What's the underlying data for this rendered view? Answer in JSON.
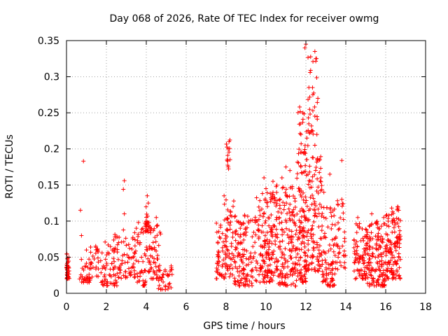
{
  "chart_data": {
    "type": "scatter",
    "title": "Day 068 of 2026, Rate Of TEC Index for receiver owmg",
    "xlabel": "GPS time / hours",
    "ylabel": "ROTI / TECUs",
    "xlim": [
      0,
      18
    ],
    "ylim": [
      0,
      0.35
    ],
    "grid": true,
    "marker": "plus",
    "marker_color": "#ff0000",
    "xticks": [
      "0",
      "2",
      "4",
      "6",
      "8",
      "10",
      "12",
      "14",
      "16",
      "18"
    ],
    "yticks": [
      "0",
      "0.05",
      "0.1",
      "0.15",
      "0.2",
      "0.25",
      "0.3",
      "0.35"
    ],
    "xtick_values": [
      0,
      2,
      4,
      6,
      8,
      10,
      12,
      14,
      16,
      18
    ],
    "ytick_values": [
      0,
      0.05,
      0.1,
      0.15,
      0.2,
      0.25,
      0.3,
      0.35
    ],
    "clusters": [
      {
        "x": [
          0.0,
          0.15
        ],
        "y": [
          0.02,
          0.055
        ],
        "n": 40
      },
      {
        "x": [
          0.65,
          1.2
        ],
        "y": [
          0.015,
          0.05
        ],
        "n": 35
      },
      {
        "x": [
          1.2,
          1.6
        ],
        "y": [
          0.02,
          0.07
        ],
        "n": 25
      },
      {
        "x": [
          1.7,
          2.4
        ],
        "y": [
          0.01,
          0.075
        ],
        "n": 50
      },
      {
        "x": [
          2.4,
          3.0
        ],
        "y": [
          0.01,
          0.09
        ],
        "n": 45
      },
      {
        "x": [
          3.0,
          3.5
        ],
        "y": [
          0.02,
          0.085
        ],
        "n": 35
      },
      {
        "x": [
          3.5,
          4.1
        ],
        "y": [
          0.01,
          0.1
        ],
        "n": 45
      },
      {
        "x": [
          3.95,
          4.15
        ],
        "y": [
          0.085,
          0.125
        ],
        "n": 22
      },
      {
        "x": [
          4.1,
          4.8
        ],
        "y": [
          0.02,
          0.1
        ],
        "n": 60
      },
      {
        "x": [
          4.6,
          5.3
        ],
        "y": [
          0.005,
          0.04
        ],
        "n": 35
      },
      {
        "x": [
          7.5,
          7.9
        ],
        "y": [
          0.02,
          0.1
        ],
        "n": 40
      },
      {
        "x": [
          7.9,
          8.4
        ],
        "y": [
          0.02,
          0.13
        ],
        "n": 60
      },
      {
        "x": [
          8.0,
          8.2
        ],
        "y": [
          0.17,
          0.215
        ],
        "n": 12
      },
      {
        "x": [
          8.4,
          9.5
        ],
        "y": [
          0.01,
          0.11
        ],
        "n": 130
      },
      {
        "x": [
          9.5,
          10.5
        ],
        "y": [
          0.015,
          0.14
        ],
        "n": 150
      },
      {
        "x": [
          10.5,
          11.5
        ],
        "y": [
          0.01,
          0.15
        ],
        "n": 160
      },
      {
        "x": [
          11.5,
          12.0
        ],
        "y": [
          0.015,
          0.2
        ],
        "n": 110
      },
      {
        "x": [
          11.6,
          12.1
        ],
        "y": [
          0.19,
          0.26
        ],
        "n": 18
      },
      {
        "x": [
          12.0,
          12.8
        ],
        "y": [
          0.03,
          0.19
        ],
        "n": 130
      },
      {
        "x": [
          12.1,
          12.6
        ],
        "y": [
          0.22,
          0.33
        ],
        "n": 30
      },
      {
        "x": [
          12.8,
          13.5
        ],
        "y": [
          0.01,
          0.12
        ],
        "n": 90
      },
      {
        "x": [
          13.5,
          14.0
        ],
        "y": [
          0.03,
          0.14
        ],
        "n": 35
      },
      {
        "x": [
          14.4,
          15.0
        ],
        "y": [
          0.02,
          0.1
        ],
        "n": 70
      },
      {
        "x": [
          15.0,
          16.0
        ],
        "y": [
          0.01,
          0.1
        ],
        "n": 150
      },
      {
        "x": [
          16.0,
          16.75
        ],
        "y": [
          0.02,
          0.12
        ],
        "n": 130
      }
    ],
    "points": [
      [
        0.85,
        0.183
      ],
      [
        0.7,
        0.115
      ],
      [
        0.75,
        0.08
      ],
      [
        1.0,
        0.06
      ],
      [
        2.9,
        0.156
      ],
      [
        2.85,
        0.144
      ],
      [
        2.9,
        0.11
      ],
      [
        13.8,
        0.184
      ],
      [
        12.0,
        0.345
      ],
      [
        11.95,
        0.34
      ],
      [
        12.45,
        0.335
      ],
      [
        12.5,
        0.325
      ],
      [
        12.15,
        0.285
      ],
      [
        12.35,
        0.275
      ],
      [
        12.6,
        0.27
      ],
      [
        11.85,
        0.25
      ],
      [
        12.55,
        0.22
      ],
      [
        12.45,
        0.205
      ],
      [
        12.7,
        0.185
      ],
      [
        12.75,
        0.16
      ],
      [
        11.0,
        0.175
      ],
      [
        11.2,
        0.17
      ],
      [
        10.35,
        0.155
      ],
      [
        8.15,
        0.21
      ],
      [
        8.1,
        0.2
      ],
      [
        8.2,
        0.185
      ],
      [
        7.9,
        0.135
      ],
      [
        9.9,
        0.16
      ],
      [
        10.0,
        0.145
      ],
      [
        10.8,
        0.16
      ],
      [
        12.9,
        0.14
      ],
      [
        13.8,
        0.13
      ],
      [
        13.2,
        0.165
      ],
      [
        12.05,
        0.215
      ],
      [
        11.75,
        0.22
      ],
      [
        4.05,
        0.135
      ],
      [
        4.1,
        0.125
      ],
      [
        4.5,
        0.105
      ],
      [
        3.5,
        0.09
      ],
      [
        16.6,
        0.12
      ],
      [
        16.3,
        0.118
      ],
      [
        15.3,
        0.11
      ],
      [
        14.6,
        0.105
      ],
      [
        15.9,
        0.105
      ]
    ]
  }
}
